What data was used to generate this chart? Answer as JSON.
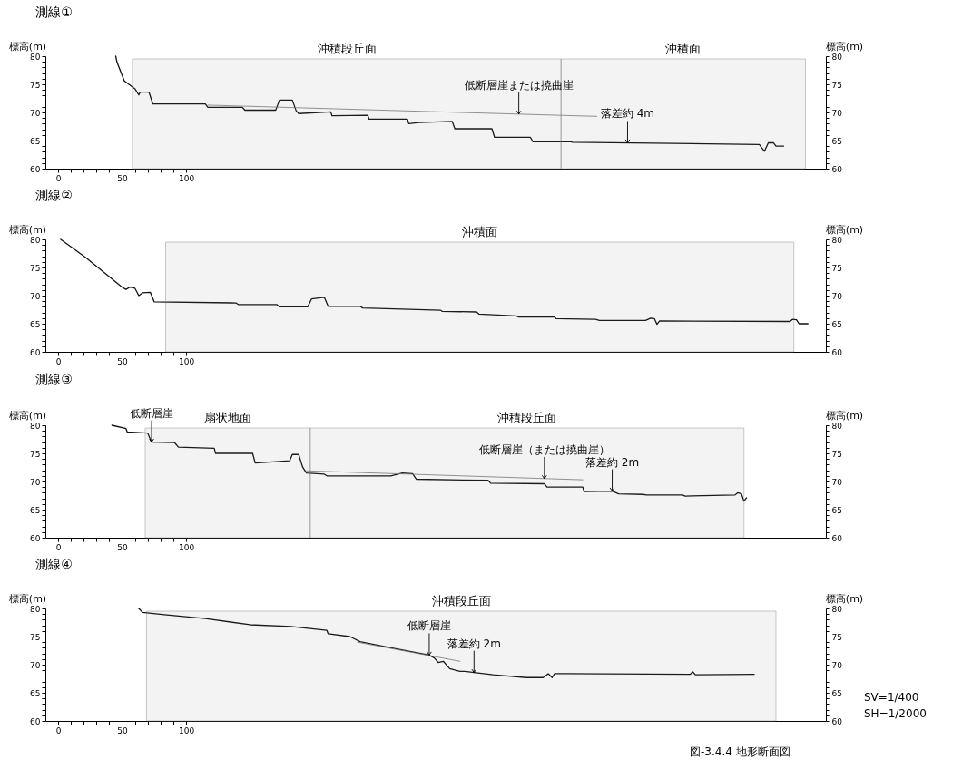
{
  "chart_data": [
    {
      "type": "line",
      "title": "測線①",
      "ylabel": "標高(m)",
      "y2label": "標高(m)",
      "xlim": [
        -10,
        600
      ],
      "ylim": [
        60,
        80
      ],
      "y2lim": [
        60,
        80
      ],
      "xticks": [
        0,
        {
          "value": 10,
          "label": null
        },
        {
          "value": 20,
          "label": null
        },
        {
          "value": 30,
          "label": null
        },
        {
          "value": 40,
          "label": null
        },
        50,
        {
          "value": 60,
          "label": null
        },
        {
          "value": 70,
          "label": null
        },
        {
          "value": 80,
          "label": null
        },
        {
          "value": 90,
          "label": null
        },
        100
      ],
      "yticks": [
        60,
        {
          "value": 61,
          "label": null
        },
        {
          "value": 62,
          "label": null
        },
        {
          "value": 63,
          "label": null
        },
        {
          "value": 64,
          "label": null
        },
        65,
        {
          "value": 66,
          "label": null
        },
        {
          "value": 67,
          "label": null
        },
        {
          "value": 68,
          "label": null
        },
        {
          "value": 69,
          "label": null
        },
        70,
        {
          "value": 71,
          "label": null
        },
        {
          "value": 72,
          "label": null
        },
        {
          "value": 73,
          "label": null
        },
        {
          "value": 74,
          "label": null
        },
        75,
        {
          "value": 76,
          "label": null
        },
        {
          "value": 77,
          "label": null
        },
        {
          "value": 78,
          "label": null
        },
        {
          "value": 79,
          "label": null
        },
        80
      ],
      "y2ticks": [
        60,
        {
          "value": 61,
          "label": null
        },
        {
          "value": 62,
          "label": null
        },
        {
          "value": 63,
          "label": null
        },
        {
          "value": 64,
          "label": null
        },
        65,
        {
          "value": 66,
          "label": null
        },
        {
          "value": 67,
          "label": null
        },
        {
          "value": 68,
          "label": null
        },
        {
          "value": 69,
          "label": null
        },
        70,
        {
          "value": 71,
          "label": null
        },
        {
          "value": 72,
          "label": null
        },
        {
          "value": 73,
          "label": null
        },
        {
          "value": 74,
          "label": null
        },
        75,
        {
          "value": 76,
          "label": null
        },
        {
          "value": 77,
          "label": null
        },
        {
          "value": 78,
          "label": null
        },
        {
          "value": 79,
          "label": null
        },
        80
      ],
      "series": [
        {
          "color": "#111111",
          "x": [
            45,
            46,
            51.7,
            60,
            63,
            64,
            71,
            74,
            115,
            117,
            144,
            146,
            170,
            173,
            183,
            186,
            188,
            213,
            214,
            242,
            243,
            273,
            274,
            282,
            308,
            310,
            339,
            341,
            369,
            371,
            400,
            402,
            548,
            552,
            555,
            559,
            561,
            567
          ],
          "values": [
            80,
            78.9,
            75.6,
            74.2,
            73.1,
            73.6,
            73.6,
            71.5,
            71.5,
            70.9,
            70.9,
            70.4,
            70.4,
            72.2,
            72.2,
            70.3,
            69.8,
            70.1,
            69.4,
            69.5,
            68.8,
            68.8,
            68.0,
            68.2,
            68.4,
            67.1,
            67.1,
            65.6,
            65.6,
            64.8,
            64.8,
            64.7,
            64.3,
            63.1,
            64.6,
            64.6,
            64.0,
            64.0
          ]
        },
        {
          "color": "#777777",
          "x": [
            117,
            421
          ],
          "values": [
            71.3,
            69.3
          ]
        }
      ],
      "bands": [
        {
          "axis": "x",
          "from": 58,
          "to": 393,
          "label": "沖積段丘面"
        },
        {
          "axis": "x",
          "from": 393,
          "to": 584,
          "label": "沖積面"
        }
      ],
      "annotations": [
        {
          "text": "低断層崖または撓曲崖",
          "x": 360,
          "y": 69.7
        },
        {
          "text": "落差約 4m",
          "x": 445,
          "y": 64.6
        }
      ]
    },
    {
      "type": "line",
      "title": "測線②",
      "ylabel": "標高(m)",
      "y2label": "標高(m)",
      "xlim": [
        -10,
        600
      ],
      "ylim": [
        60,
        80
      ],
      "y2lim": [
        60,
        80
      ],
      "xticks": [
        0,
        {
          "value": 10,
          "label": null
        },
        {
          "value": 20,
          "label": null
        },
        {
          "value": 30,
          "label": null
        },
        {
          "value": 40,
          "label": null
        },
        50,
        {
          "value": 60,
          "label": null
        },
        {
          "value": 70,
          "label": null
        },
        {
          "value": 80,
          "label": null
        },
        {
          "value": 90,
          "label": null
        },
        100
      ],
      "yticks": [
        60,
        {
          "value": 61,
          "label": null
        },
        {
          "value": 62,
          "label": null
        },
        {
          "value": 63,
          "label": null
        },
        {
          "value": 64,
          "label": null
        },
        65,
        {
          "value": 66,
          "label": null
        },
        {
          "value": 67,
          "label": null
        },
        {
          "value": 68,
          "label": null
        },
        {
          "value": 69,
          "label": null
        },
        70,
        {
          "value": 71,
          "label": null
        },
        {
          "value": 72,
          "label": null
        },
        {
          "value": 73,
          "label": null
        },
        {
          "value": 74,
          "label": null
        },
        75,
        {
          "value": 76,
          "label": null
        },
        {
          "value": 77,
          "label": null
        },
        {
          "value": 78,
          "label": null
        },
        {
          "value": 79,
          "label": null
        },
        80
      ],
      "y2ticks": [
        60,
        {
          "value": 61,
          "label": null
        },
        {
          "value": 62,
          "label": null
        },
        {
          "value": 63,
          "label": null
        },
        {
          "value": 64,
          "label": null
        },
        65,
        {
          "value": 66,
          "label": null
        },
        {
          "value": 67,
          "label": null
        },
        {
          "value": 68,
          "label": null
        },
        {
          "value": 69,
          "label": null
        },
        70,
        {
          "value": 71,
          "label": null
        },
        {
          "value": 72,
          "label": null
        },
        {
          "value": 73,
          "label": null
        },
        {
          "value": 74,
          "label": null
        },
        75,
        {
          "value": 76,
          "label": null
        },
        {
          "value": 77,
          "label": null
        },
        {
          "value": 78,
          "label": null
        },
        {
          "value": 79,
          "label": null
        },
        80
      ],
      "series": [
        {
          "color": "#111111",
          "x": [
            2,
            22,
            50,
            53,
            56,
            60,
            63,
            66,
            72,
            75,
            139,
            141,
            171,
            173,
            195,
            198,
            208,
            211,
            236,
            238,
            299,
            300,
            327,
            329,
            358,
            360,
            388,
            389,
            420,
            423,
            459,
            463,
            466,
            468,
            470,
            572,
            574,
            577,
            579,
            586
          ],
          "values": [
            80,
            76.7,
            71.5,
            71.1,
            71.5,
            71.3,
            70.0,
            70.5,
            70.6,
            68.9,
            68.7,
            68.4,
            68.4,
            68.0,
            68.0,
            69.4,
            69.7,
            68.1,
            68.1,
            67.8,
            67.4,
            67.2,
            67.1,
            66.7,
            66.4,
            66.2,
            66.2,
            65.9,
            65.8,
            65.6,
            65.6,
            66.0,
            65.9,
            64.9,
            65.5,
            65.4,
            65.8,
            65.7,
            65.0,
            65.0
          ]
        }
      ],
      "bands": [
        {
          "axis": "x",
          "from": 84,
          "to": 575,
          "label": "沖積面"
        }
      ]
    },
    {
      "type": "line",
      "title": "測線③",
      "ylabel": "標高(m)",
      "y2label": "標高(m)",
      "xlim": [
        -10,
        600
      ],
      "ylim": [
        60,
        80
      ],
      "y2lim": [
        60,
        80
      ],
      "xticks": [
        0,
        {
          "value": 10,
          "label": null
        },
        {
          "value": 20,
          "label": null
        },
        {
          "value": 30,
          "label": null
        },
        {
          "value": 40,
          "label": null
        },
        50,
        {
          "value": 60,
          "label": null
        },
        {
          "value": 70,
          "label": null
        },
        {
          "value": 80,
          "label": null
        },
        {
          "value": 90,
          "label": null
        },
        100
      ],
      "yticks": [
        60,
        {
          "value": 61,
          "label": null
        },
        {
          "value": 62,
          "label": null
        },
        {
          "value": 63,
          "label": null
        },
        {
          "value": 64,
          "label": null
        },
        65,
        {
          "value": 66,
          "label": null
        },
        {
          "value": 67,
          "label": null
        },
        {
          "value": 68,
          "label": null
        },
        {
          "value": 69,
          "label": null
        },
        70,
        {
          "value": 71,
          "label": null
        },
        {
          "value": 72,
          "label": null
        },
        {
          "value": 73,
          "label": null
        },
        {
          "value": 74,
          "label": null
        },
        75,
        {
          "value": 76,
          "label": null
        },
        {
          "value": 77,
          "label": null
        },
        {
          "value": 78,
          "label": null
        },
        {
          "value": 79,
          "label": null
        },
        80
      ],
      "y2ticks": [
        60,
        {
          "value": 61,
          "label": null
        },
        {
          "value": 62,
          "label": null
        },
        {
          "value": 63,
          "label": null
        },
        {
          "value": 64,
          "label": null
        },
        65,
        {
          "value": 66,
          "label": null
        },
        {
          "value": 67,
          "label": null
        },
        {
          "value": 68,
          "label": null
        },
        {
          "value": 69,
          "label": null
        },
        70,
        {
          "value": 71,
          "label": null
        },
        {
          "value": 72,
          "label": null
        },
        {
          "value": 73,
          "label": null
        },
        {
          "value": 74,
          "label": null
        },
        75,
        {
          "value": 76,
          "label": null
        },
        {
          "value": 77,
          "label": null
        },
        {
          "value": 78,
          "label": null
        },
        {
          "value": 79,
          "label": null
        },
        80
      ],
      "series": [
        {
          "color": "#111111",
          "x": [
            42,
            53,
            54,
            70,
            73,
            91,
            94,
            122,
            123,
            152,
            154,
            181,
            183,
            188,
            191,
            194,
            208,
            210,
            260,
            269,
            277,
            280,
            336,
            338,
            380,
            382,
            410,
            411,
            433,
            438,
            457,
            460,
            488,
            490,
            529,
            531,
            534,
            536,
            538
          ],
          "values": [
            80,
            79.4,
            78.8,
            78.6,
            77.0,
            76.9,
            76.1,
            75.9,
            75.0,
            75.0,
            73.3,
            73.7,
            74.8,
            74.8,
            72.6,
            71.5,
            71.3,
            71.0,
            71.0,
            71.5,
            71.4,
            70.4,
            70.2,
            69.7,
            69.6,
            69.0,
            69.0,
            68.2,
            68.3,
            67.8,
            67.7,
            67.6,
            67.6,
            67.4,
            67.6,
            68.0,
            67.8,
            66.5,
            67.1
          ]
        },
        {
          "color": "#777777",
          "x": [
            194,
            410
          ],
          "values": [
            71.9,
            70.3
          ]
        }
      ],
      "bands": [
        {
          "axis": "x",
          "from": 68,
          "to": 197,
          "label": "扇状地面"
        },
        {
          "axis": "x",
          "from": 197,
          "to": 536,
          "label": "沖積段丘面"
        }
      ],
      "annotations": [
        {
          "text": "低断層崖",
          "x": 73,
          "y": 77.0
        },
        {
          "text": "低断層崖（または撓曲崖）",
          "x": 380,
          "y": 70.5
        },
        {
          "text": "落差約 2m",
          "x": 433,
          "y": 68.3
        }
      ]
    },
    {
      "type": "line",
      "title": "測線④",
      "ylabel": "標高(m)",
      "y2label": "標高(m)",
      "xlim": [
        -10,
        600
      ],
      "ylim": [
        60,
        80
      ],
      "y2lim": [
        60,
        80
      ],
      "xticks": [
        0,
        {
          "value": 10,
          "label": null
        },
        {
          "value": 20,
          "label": null
        },
        {
          "value": 30,
          "label": null
        },
        {
          "value": 40,
          "label": null
        },
        50,
        {
          "value": 60,
          "label": null
        },
        {
          "value": 70,
          "label": null
        },
        {
          "value": 80,
          "label": null
        },
        {
          "value": 90,
          "label": null
        },
        100
      ],
      "yticks": [
        60,
        {
          "value": 61,
          "label": null
        },
        {
          "value": 62,
          "label": null
        },
        {
          "value": 63,
          "label": null
        },
        {
          "value": 64,
          "label": null
        },
        65,
        {
          "value": 66,
          "label": null
        },
        {
          "value": 67,
          "label": null
        },
        {
          "value": 68,
          "label": null
        },
        {
          "value": 69,
          "label": null
        },
        70,
        {
          "value": 71,
          "label": null
        },
        {
          "value": 72,
          "label": null
        },
        {
          "value": 73,
          "label": null
        },
        {
          "value": 74,
          "label": null
        },
        75,
        {
          "value": 76,
          "label": null
        },
        {
          "value": 77,
          "label": null
        },
        {
          "value": 78,
          "label": null
        },
        {
          "value": 79,
          "label": null
        },
        80
      ],
      "y2ticks": [
        60,
        {
          "value": 61,
          "label": null
        },
        {
          "value": 62,
          "label": null
        },
        {
          "value": 63,
          "label": null
        },
        {
          "value": 64,
          "label": null
        },
        65,
        {
          "value": 66,
          "label": null
        },
        {
          "value": 67,
          "label": null
        },
        {
          "value": 68,
          "label": null
        },
        {
          "value": 69,
          "label": null
        },
        70,
        {
          "value": 71,
          "label": null
        },
        {
          "value": 72,
          "label": null
        },
        {
          "value": 73,
          "label": null
        },
        {
          "value": 74,
          "label": null
        },
        75,
        {
          "value": 76,
          "label": null
        },
        {
          "value": 77,
          "label": null
        },
        {
          "value": 78,
          "label": null
        },
        {
          "value": 79,
          "label": null
        },
        80
      ],
      "series": [
        {
          "color": "#111111",
          "x": [
            63,
            66,
            83,
            115,
            150,
            182,
            210,
            211,
            228,
            236,
            260,
            290,
            294,
            297,
            301,
            306,
            314,
            318,
            325,
            340,
            366,
            379,
            383,
            386,
            388,
            394,
            494,
            496,
            498,
            544
          ],
          "values": [
            80,
            79.3,
            78.9,
            78.2,
            77.1,
            76.8,
            76.1,
            75.5,
            75.0,
            74.1,
            73.0,
            71.7,
            71.2,
            70.4,
            70.6,
            69.3,
            68.8,
            68.8,
            68.6,
            68.2,
            67.7,
            67.7,
            68.4,
            67.7,
            68.4,
            68.4,
            68.3,
            68.7,
            68.2,
            68.3
          ]
        },
        {
          "color": "#777777",
          "x": [
            234,
            314
          ],
          "values": [
            74.0,
            70.6
          ]
        }
      ],
      "bands": [
        {
          "axis": "x",
          "from": 69,
          "to": 561,
          "label": "沖積段丘面"
        }
      ],
      "annotations": [
        {
          "text": "低断層崖",
          "x": 290,
          "y": 71.7
        },
        {
          "text": "落差約 2m",
          "x": 325,
          "y": 68.6
        },
        "SV=1/400",
        "SH=1/2000",
        "図-3.4.4 地形断面図"
      ]
    }
  ]
}
